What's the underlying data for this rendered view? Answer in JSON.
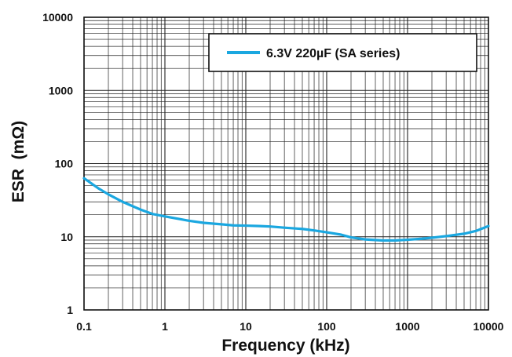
{
  "chart_data": {
    "type": "line",
    "title": "",
    "xlabel": "Frequency (kHz)",
    "ylabel": "ESR  (mΩ)",
    "x_scale": "log",
    "y_scale": "log",
    "xlim": [
      0.1,
      10000
    ],
    "ylim": [
      1,
      10000
    ],
    "x_ticks": [
      {
        "value": 0.1,
        "label": "0.1"
      },
      {
        "value": 1,
        "label": "1"
      },
      {
        "value": 10,
        "label": "10"
      },
      {
        "value": 100,
        "label": "100"
      },
      {
        "value": 1000,
        "label": "1000"
      },
      {
        "value": 10000,
        "label": "10000"
      }
    ],
    "y_ticks": [
      {
        "value": 1,
        "label": "1"
      },
      {
        "value": 10,
        "label": "10"
      },
      {
        "value": 100,
        "label": "100"
      },
      {
        "value": 1000,
        "label": "1000"
      },
      {
        "value": 10000,
        "label": "10000"
      }
    ],
    "grid": true,
    "legend_position": "top-right",
    "series": [
      {
        "name": "6.3V 220µF (SA series)",
        "color": "#1aa7e0",
        "x": [
          0.1,
          0.15,
          0.2,
          0.3,
          0.5,
          0.7,
          1,
          1.5,
          2,
          3,
          5,
          7,
          10,
          15,
          20,
          30,
          50,
          70,
          100,
          150,
          200,
          300,
          500,
          700,
          1000,
          1500,
          2000,
          3000,
          5000,
          7000,
          10000
        ],
        "y": [
          63,
          46,
          38,
          30,
          23.5,
          20.5,
          19,
          17.5,
          16.5,
          15.5,
          14.8,
          14.3,
          14.2,
          14.0,
          13.8,
          13.3,
          12.8,
          12.2,
          11.5,
          10.7,
          9.8,
          9.2,
          8.9,
          8.9,
          9.1,
          9.4,
          9.7,
          10.2,
          11.0,
          12.0,
          14.0
        ]
      }
    ]
  },
  "colors": {
    "grid": "#222222",
    "frame": "#111111",
    "series": "#1aa7e0"
  }
}
